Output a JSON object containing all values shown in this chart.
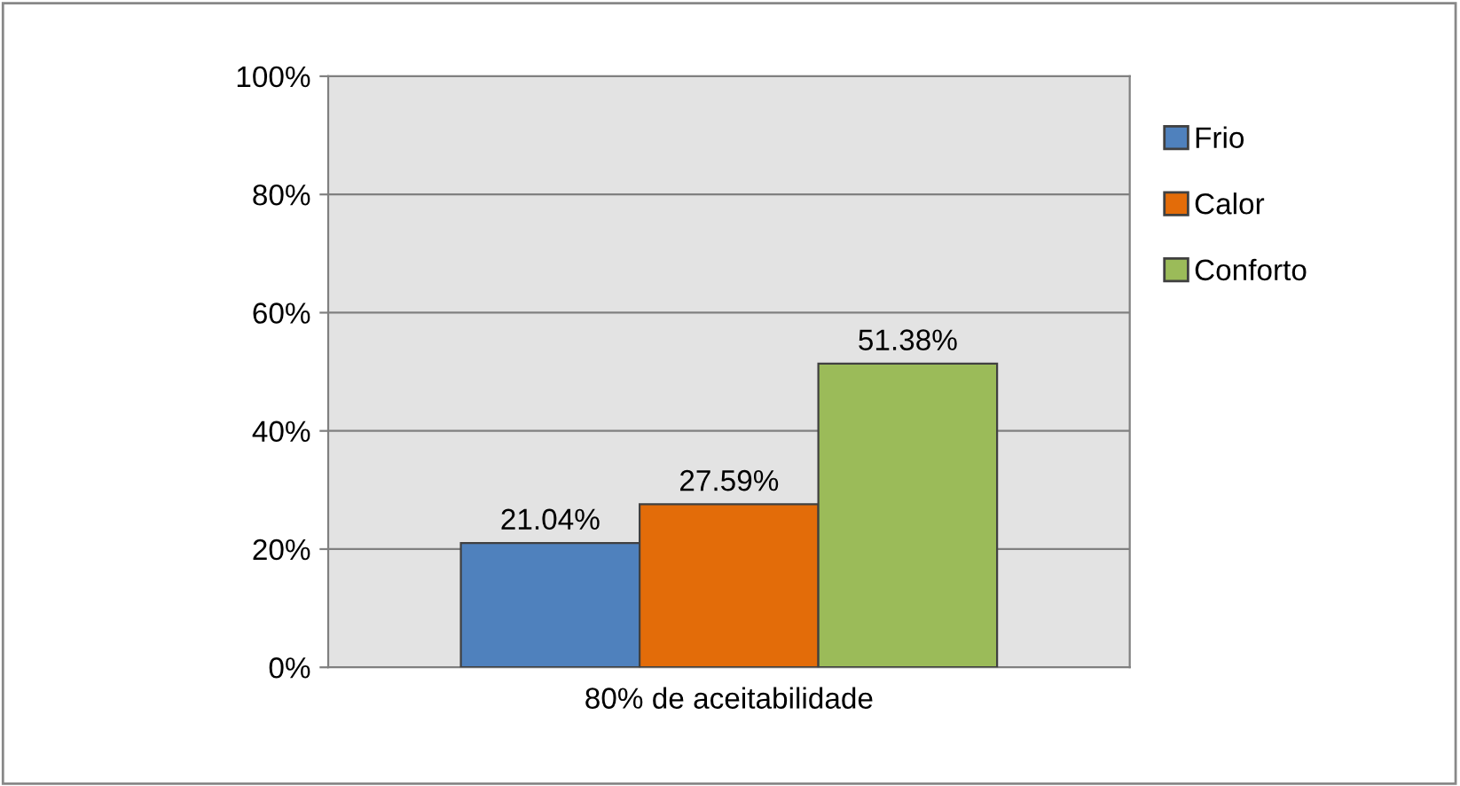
{
  "chart_data": {
    "type": "bar",
    "categories": [
      "80% de aceitabilidade"
    ],
    "series": [
      {
        "name": "Frio",
        "color": "#4f81bd",
        "values": [
          21.04
        ],
        "value_labels": [
          "21.04%"
        ]
      },
      {
        "name": "Calor",
        "color": "#e36c09",
        "values": [
          27.59
        ],
        "value_labels": [
          "27.59%"
        ]
      },
      {
        "name": "Conforto",
        "color": "#9bbb59",
        "values": [
          51.38
        ],
        "value_labels": [
          "51.38%"
        ]
      }
    ],
    "ylim": [
      0,
      100
    ],
    "yticks": [
      {
        "value": 0,
        "label": "0%"
      },
      {
        "value": 20,
        "label": "20%"
      },
      {
        "value": 40,
        "label": "40%"
      },
      {
        "value": 60,
        "label": "60%"
      },
      {
        "value": 80,
        "label": "80%"
      },
      {
        "value": 100,
        "label": "100%"
      }
    ],
    "grid": "y",
    "legend": "right"
  }
}
